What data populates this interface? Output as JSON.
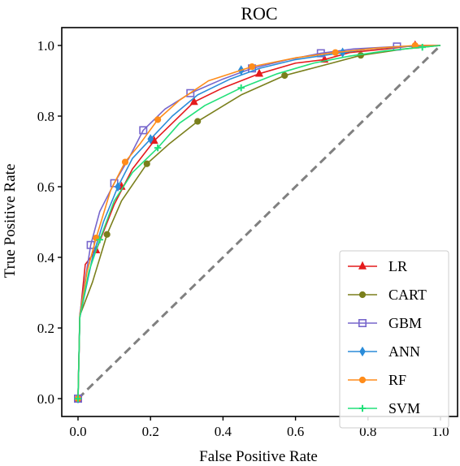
{
  "chart_data": {
    "type": "line",
    "title": "ROC",
    "xlabel": "False Positive Rate",
    "ylabel": "True Positive Rate",
    "xlim": [
      0.0,
      1.0
    ],
    "ylim": [
      0.0,
      1.0
    ],
    "x_ticks": [
      "0.0",
      "0.2",
      "0.4",
      "0.6",
      "0.8",
      "1.0"
    ],
    "y_ticks": [
      "0.0",
      "0.2",
      "0.4",
      "0.6",
      "0.8",
      "1.0"
    ],
    "grid": false,
    "legend_position": "bottom-right",
    "diagonal": {
      "x": [
        0,
        1
      ],
      "y": [
        0,
        1
      ],
      "color": "#808080",
      "style": "dashed"
    },
    "series": [
      {
        "name": "LR",
        "color": "#e41a1c",
        "marker": "triangle",
        "x": [
          0,
          0.005,
          0.02,
          0.05,
          0.1,
          0.15,
          0.21,
          0.25,
          0.32,
          0.4,
          0.5,
          0.6,
          0.68,
          0.75,
          0.85,
          0.93,
          1.0
        ],
        "y": [
          0,
          0.23,
          0.38,
          0.42,
          0.55,
          0.65,
          0.73,
          0.77,
          0.84,
          0.88,
          0.92,
          0.95,
          0.96,
          0.98,
          0.99,
          1.0,
          1.0
        ],
        "markers_x": [
          0,
          0.05,
          0.12,
          0.21,
          0.32,
          0.5,
          0.68,
          0.93
        ],
        "markers_y": [
          0,
          0.42,
          0.6,
          0.73,
          0.84,
          0.92,
          0.96,
          1.0
        ]
      },
      {
        "name": "CART",
        "color": "#7a7f1c",
        "marker": "circle",
        "x": [
          0,
          0.005,
          0.04,
          0.08,
          0.12,
          0.19,
          0.25,
          0.33,
          0.45,
          0.57,
          0.7,
          0.78,
          0.9,
          1.0
        ],
        "y": [
          0,
          0.235,
          0.33,
          0.465,
          0.56,
          0.665,
          0.72,
          0.785,
          0.86,
          0.915,
          0.95,
          0.972,
          0.99,
          1.0
        ],
        "markers_x": [
          0,
          0.08,
          0.19,
          0.33,
          0.57,
          0.78
        ],
        "markers_y": [
          0,
          0.465,
          0.665,
          0.785,
          0.915,
          0.972
        ]
      },
      {
        "name": "GBM",
        "color": "#7766cc",
        "marker": "square",
        "x": [
          0,
          0.005,
          0.035,
          0.06,
          0.1,
          0.14,
          0.18,
          0.24,
          0.31,
          0.4,
          0.48,
          0.58,
          0.67,
          0.76,
          0.88,
          1.0
        ],
        "y": [
          0,
          0.24,
          0.435,
          0.53,
          0.61,
          0.68,
          0.76,
          0.82,
          0.865,
          0.905,
          0.935,
          0.96,
          0.978,
          0.99,
          0.997,
          1.0
        ],
        "markers_x": [
          0,
          0.035,
          0.1,
          0.18,
          0.31,
          0.48,
          0.67,
          0.88
        ],
        "markers_y": [
          0,
          0.435,
          0.61,
          0.76,
          0.865,
          0.935,
          0.978,
          0.997
        ]
      },
      {
        "name": "ANN",
        "color": "#2b8cd9",
        "marker": "diamond",
        "x": [
          0,
          0.005,
          0.04,
          0.07,
          0.11,
          0.15,
          0.2,
          0.26,
          0.33,
          0.42,
          0.5,
          0.6,
          0.7,
          0.8,
          0.9,
          1.0
        ],
        "y": [
          0,
          0.23,
          0.4,
          0.5,
          0.6,
          0.68,
          0.735,
          0.8,
          0.86,
          0.905,
          0.935,
          0.96,
          0.975,
          0.99,
          0.997,
          1.0
        ],
        "markers_x": [
          0,
          0.11,
          0.2,
          0.45,
          0.73
        ],
        "markers_y": [
          0,
          0.6,
          0.735,
          0.93,
          0.98
        ]
      },
      {
        "name": "RF",
        "color": "#ff8c1a",
        "marker": "circle",
        "x": [
          0,
          0.005,
          0.025,
          0.05,
          0.09,
          0.13,
          0.17,
          0.22,
          0.28,
          0.36,
          0.48,
          0.6,
          0.71,
          0.82,
          0.93,
          1.0
        ],
        "y": [
          0,
          0.235,
          0.36,
          0.455,
          0.59,
          0.67,
          0.72,
          0.79,
          0.845,
          0.9,
          0.94,
          0.965,
          0.98,
          0.992,
          1.0,
          1.0
        ],
        "markers_x": [
          0,
          0.05,
          0.13,
          0.22,
          0.48,
          0.71,
          0.93
        ],
        "markers_y": [
          0,
          0.455,
          0.67,
          0.79,
          0.94,
          0.98,
          1.0
        ]
      },
      {
        "name": "SVM",
        "color": "#22e07a",
        "marker": "plus",
        "x": [
          0,
          0.005,
          0.03,
          0.06,
          0.1,
          0.15,
          0.22,
          0.28,
          0.35,
          0.45,
          0.55,
          0.65,
          0.75,
          0.85,
          0.95,
          1.0
        ],
        "y": [
          0,
          0.23,
          0.36,
          0.45,
          0.56,
          0.64,
          0.71,
          0.78,
          0.83,
          0.88,
          0.92,
          0.95,
          0.97,
          0.985,
          0.995,
          1.0
        ],
        "markers_x": [
          0,
          0.06,
          0.22,
          0.45,
          0.95
        ],
        "markers_y": [
          0,
          0.45,
          0.71,
          0.88,
          0.995
        ]
      }
    ]
  }
}
